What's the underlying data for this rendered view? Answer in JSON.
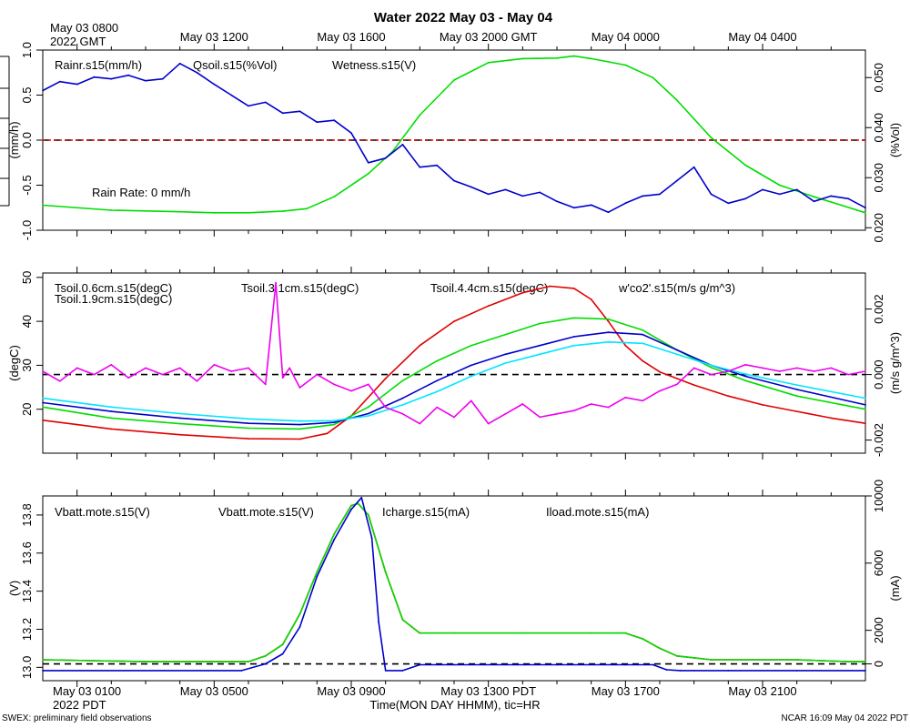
{
  "title": "Water 2022 May 03 - May 04",
  "top_axis": {
    "first_line1": "May 03 0800",
    "first_line2": "2022 GMT",
    "labels": [
      "May 03 1200",
      "May 03 1600",
      "May 03 2000 GMT",
      "May 04 0000",
      "May 04 0400"
    ]
  },
  "bottom_axis": {
    "first_line1": "May 03 0100",
    "first_line2": "2022 PDT",
    "labels": [
      "May 03 0500",
      "May 03 0900",
      "May 03 1300 PDT",
      "May 03 1700",
      "May 03 2100"
    ],
    "xlabel": "Time(MON DAY HHMM), tic=HR"
  },
  "footer": {
    "left": "SWEX: preliminary field observations",
    "right": "NCAR 16:09 May 04 2022 PDT"
  },
  "colors": {
    "red": "#e00000",
    "green": "#00dd00",
    "blue": "#0000cc",
    "cyan": "#00e5ff",
    "magenta": "#ee00ee",
    "axis": "#000000"
  },
  "chart_data": [
    {
      "type": "line",
      "panel": "water",
      "x_unit": "hours since May 03 0000 PDT",
      "xlim": [
        0.0,
        24.0
      ],
      "left_axis": {
        "label": "(mm/h)",
        "ylim": [
          -1.0,
          1.0
        ],
        "ticks": [
          -1.0,
          -0.5,
          0.0,
          0.5,
          1.0
        ],
        "tick_labels": [
          "-1.0",
          "-0.5",
          "0.0",
          "0.5",
          "1.0"
        ]
      },
      "right_axis": {
        "label": "(%Vol)",
        "ylim": [
          0.0195,
          0.0555
        ],
        "ticks": [
          0.02,
          0.03,
          0.04,
          0.05
        ],
        "tick_labels": [
          "0.020",
          "0.030",
          "0.040",
          "0.050"
        ]
      },
      "zero_line": 0.0,
      "annotation": "Rain Rate: 0 mm/h",
      "series": [
        {
          "name": "Rainr.s15(mm/h)",
          "color_key": "red",
          "axis": "left",
          "x": [
            0.0,
            24.0
          ],
          "values": [
            0.0,
            0.0
          ]
        },
        {
          "name": "Qsoil.s15(%Vol)",
          "color_key": "green",
          "axis": "right",
          "x": [
            0.0,
            2.0,
            4.0,
            5.0,
            6.0,
            7.0,
            7.7,
            8.5,
            9.5,
            10.2,
            11.0,
            12.0,
            13.0,
            14.0,
            15.0,
            15.5,
            16.0,
            17.0,
            17.8,
            18.5,
            19.5,
            20.5,
            21.5,
            22.5,
            23.3,
            24.0
          ],
          "values": [
            0.0245,
            0.0235,
            0.0232,
            0.023,
            0.023,
            0.0233,
            0.0238,
            0.0262,
            0.0308,
            0.0352,
            0.0425,
            0.0495,
            0.053,
            0.0538,
            0.0539,
            0.0543,
            0.0538,
            0.0525,
            0.05,
            0.0455,
            0.038,
            0.0325,
            0.0285,
            0.0262,
            0.0245,
            0.023
          ]
        },
        {
          "name": "Wetness.s15(V)",
          "color_key": "blue",
          "axis": "left",
          "x": [
            0.0,
            0.5,
            1.0,
            1.5,
            2.0,
            2.5,
            3.0,
            3.5,
            4.0,
            4.5,
            5.0,
            5.5,
            6.0,
            6.5,
            7.0,
            7.5,
            8.0,
            8.5,
            9.0,
            9.5,
            10.0,
            10.5,
            11.0,
            11.5,
            12.0,
            12.5,
            13.0,
            13.5,
            14.0,
            14.5,
            15.0,
            15.5,
            16.0,
            16.5,
            17.0,
            17.5,
            18.0,
            18.5,
            19.0,
            19.5,
            20.0,
            20.5,
            21.0,
            21.5,
            22.0,
            22.5,
            23.0,
            23.5,
            24.0
          ],
          "values": [
            0.55,
            0.65,
            0.62,
            0.7,
            0.68,
            0.72,
            0.66,
            0.68,
            0.85,
            0.75,
            0.62,
            0.5,
            0.38,
            0.42,
            0.3,
            0.32,
            0.2,
            0.22,
            0.08,
            -0.25,
            -0.2,
            -0.05,
            -0.3,
            -0.28,
            -0.45,
            -0.52,
            -0.6,
            -0.55,
            -0.62,
            -0.58,
            -0.68,
            -0.75,
            -0.72,
            -0.8,
            -0.7,
            -0.62,
            -0.6,
            -0.45,
            -0.3,
            -0.6,
            -0.7,
            -0.65,
            -0.55,
            -0.6,
            -0.55,
            -0.68,
            -0.62,
            -0.65,
            -0.75
          ]
        }
      ]
    },
    {
      "type": "line",
      "panel": "temperature",
      "x_unit": "hours since May 03 0000 PDT",
      "xlim": [
        0.0,
        24.0
      ],
      "left_axis": {
        "label": "(degC)",
        "ylim": [
          10.0,
          51.0
        ],
        "ticks": [
          20,
          30,
          40,
          50
        ],
        "tick_labels": [
          "20",
          "30",
          "40",
          "50"
        ]
      },
      "right_axis": {
        "label": "(m/s g/m^3)",
        "ylim": [
          -0.0024,
          0.0031
        ],
        "ticks": [
          -0.002,
          0.0,
          0.002
        ],
        "tick_labels": [
          "-0.002",
          "0.000",
          "0.002"
        ]
      },
      "zero_line": 0.0,
      "series": [
        {
          "name": "Tsoil.0.6cm.s15(degC)",
          "color_key": "red",
          "axis": "left",
          "x": [
            0.0,
            1.0,
            2.0,
            4.0,
            6.0,
            7.5,
            8.3,
            9.0,
            10.0,
            11.0,
            12.0,
            13.0,
            14.0,
            14.8,
            15.5,
            16.0,
            16.5,
            17.0,
            17.5,
            18.0,
            19.0,
            20.0,
            21.0,
            22.0,
            23.0,
            24.0
          ],
          "values": [
            17.5,
            16.5,
            15.5,
            14.2,
            13.3,
            13.2,
            14.5,
            18.5,
            27.0,
            34.5,
            40.0,
            43.5,
            46.5,
            48.0,
            47.5,
            45.0,
            40.0,
            34.5,
            31.0,
            28.5,
            25.5,
            23.0,
            21.0,
            19.5,
            18.0,
            16.8
          ]
        },
        {
          "name": "Tsoil.1.9cm.s15(degC)",
          "color_key": "green",
          "axis": "left",
          "x": [
            0.0,
            2.0,
            4.0,
            6.0,
            7.5,
            8.5,
            9.5,
            10.5,
            11.5,
            12.5,
            13.5,
            14.5,
            15.5,
            16.5,
            17.5,
            18.5,
            19.5,
            20.5,
            22.0,
            24.0
          ],
          "values": [
            20.5,
            18.0,
            16.7,
            15.7,
            15.5,
            16.5,
            20.5,
            26.5,
            31.0,
            34.5,
            37.0,
            39.5,
            40.8,
            40.5,
            38.0,
            33.5,
            29.5,
            26.5,
            23.0,
            20.0
          ]
        },
        {
          "name": "Tsoil.3.1cm.s15(degC)",
          "color_key": "blue",
          "axis": "left",
          "x": [
            0.0,
            2.0,
            4.0,
            6.0,
            7.5,
            8.5,
            9.5,
            10.5,
            11.5,
            12.5,
            13.5,
            14.5,
            15.5,
            16.5,
            17.5,
            18.5,
            19.5,
            20.5,
            22.0,
            24.0
          ],
          "values": [
            21.5,
            19.5,
            18.0,
            16.8,
            16.5,
            17.0,
            19.0,
            22.5,
            26.5,
            30.0,
            32.5,
            34.5,
            36.5,
            37.5,
            37.0,
            33.5,
            30.0,
            27.5,
            24.5,
            21.0
          ]
        },
        {
          "name": "Tsoil.4.4cm.s15(degC)",
          "color_key": "cyan",
          "axis": "left",
          "x": [
            0.0,
            2.0,
            4.0,
            6.0,
            7.5,
            8.5,
            9.5,
            10.5,
            11.5,
            12.5,
            13.5,
            14.5,
            15.5,
            16.5,
            17.5,
            18.5,
            19.5,
            20.5,
            22.0,
            24.0
          ],
          "values": [
            22.5,
            20.5,
            19.0,
            17.8,
            17.3,
            17.4,
            18.5,
            21.0,
            24.0,
            27.5,
            30.5,
            32.5,
            34.5,
            35.3,
            35.0,
            32.5,
            30.0,
            28.0,
            25.5,
            22.5
          ]
        },
        {
          "name": "w'co2'.s15(m/s g/m^3)",
          "color_key": "magenta",
          "axis": "right",
          "x": [
            0.0,
            0.5,
            1.0,
            1.5,
            2.0,
            2.5,
            3.0,
            3.5,
            4.0,
            4.5,
            5.0,
            5.5,
            6.0,
            6.5,
            6.8,
            7.0,
            7.2,
            7.5,
            8.0,
            8.5,
            9.0,
            9.5,
            10.0,
            10.5,
            11.0,
            11.5,
            12.0,
            12.5,
            13.0,
            13.5,
            14.0,
            14.5,
            15.0,
            15.5,
            16.0,
            16.5,
            17.0,
            17.5,
            18.0,
            18.5,
            19.0,
            19.5,
            20.0,
            20.5,
            21.0,
            21.5,
            22.0,
            22.5,
            23.0,
            23.5,
            24.0
          ],
          "values": [
            0.0001,
            -0.0002,
            0.0002,
            0.0,
            0.0003,
            -0.0001,
            0.0002,
            0.0,
            0.0002,
            -0.0002,
            0.0003,
            0.0001,
            0.0002,
            -0.0003,
            0.0028,
            -0.0001,
            0.0002,
            -0.0004,
            0.0,
            -0.0003,
            -0.0005,
            -0.0003,
            -0.001,
            -0.0012,
            -0.0015,
            -0.001,
            -0.0013,
            -0.0008,
            -0.0015,
            -0.0012,
            -0.0009,
            -0.0013,
            -0.0012,
            -0.0011,
            -0.0009,
            -0.001,
            -0.0007,
            -0.0008,
            -0.0005,
            -0.0003,
            0.0002,
            0.0,
            0.0001,
            0.0003,
            0.0002,
            0.0001,
            0.0002,
            0.0001,
            0.0002,
            0.0,
            0.0001
          ]
        }
      ]
    },
    {
      "type": "line",
      "panel": "power",
      "x_unit": "hours since May 03 0000 PDT",
      "xlim": [
        0.0,
        24.0
      ],
      "left_axis": {
        "label": "(V)",
        "ylim": [
          12.93,
          13.9
        ],
        "ticks": [
          13.0,
          13.2,
          13.4,
          13.6,
          13.8
        ],
        "tick_labels": [
          "13.0",
          "13.2",
          "13.4",
          "13.6",
          "13.8"
        ]
      },
      "right_axis": {
        "label": "(mA)",
        "ylim": [
          -1000,
          10000
        ],
        "ticks": [
          0,
          2000,
          6000,
          10000
        ],
        "tick_labels": [
          "0",
          "2000",
          "6000",
          "10000"
        ]
      },
      "zero_line": 0,
      "series": [
        {
          "name": "Vbatt.mote.s15(V)",
          "color_key": "red",
          "axis": "left",
          "x": [
            0.0,
            3.0,
            6.0,
            6.5,
            7.0,
            7.5,
            8.0,
            8.5,
            9.0,
            9.2,
            9.5,
            10.0,
            10.5,
            11.0,
            12.0,
            14.0,
            16.0,
            16.8,
            17.0,
            17.5,
            18.0,
            18.5,
            19.5,
            20.5,
            22.0,
            23.5,
            24.0
          ],
          "values": [
            13.04,
            13.03,
            13.03,
            13.06,
            13.12,
            13.28,
            13.5,
            13.7,
            13.85,
            13.86,
            13.8,
            13.5,
            13.25,
            13.18,
            13.18,
            13.18,
            13.18,
            13.18,
            13.18,
            13.15,
            13.1,
            13.06,
            13.04,
            13.04,
            13.04,
            13.03,
            13.03
          ]
        },
        {
          "name": "Vbatt.mote.s15(V)",
          "color_key": "green",
          "axis": "left",
          "x": [
            0.0,
            3.0,
            6.0,
            6.5,
            7.0,
            7.5,
            8.0,
            8.5,
            9.0,
            9.2,
            9.5,
            10.0,
            10.5,
            11.0,
            12.0,
            14.0,
            16.0,
            16.8,
            17.0,
            17.5,
            18.0,
            18.5,
            19.5,
            20.5,
            22.0,
            23.5,
            24.0
          ],
          "values": [
            13.04,
            13.03,
            13.03,
            13.06,
            13.12,
            13.28,
            13.5,
            13.7,
            13.85,
            13.86,
            13.8,
            13.5,
            13.25,
            13.18,
            13.18,
            13.18,
            13.18,
            13.18,
            13.18,
            13.15,
            13.1,
            13.06,
            13.04,
            13.04,
            13.04,
            13.03,
            13.03
          ]
        },
        {
          "name": "Icharge.s15(mA)",
          "color_key": "blue",
          "axis": "right",
          "x": [
            0.0,
            5.8,
            6.5,
            7.0,
            7.5,
            8.0,
            8.5,
            9.0,
            9.3,
            9.6,
            9.8,
            10.0,
            10.5,
            11.0,
            12.0,
            15.0,
            17.0,
            17.8,
            18.2,
            18.6,
            19.0,
            20.0,
            22.0,
            24.0
          ],
          "values": [
            -400,
            -400,
            0,
            600,
            2200,
            5200,
            7400,
            9200,
            9900,
            7500,
            2500,
            -400,
            -400,
            -50,
            -50,
            -50,
            -50,
            -50,
            -350,
            -400,
            -400,
            -400,
            -400,
            -400
          ]
        },
        {
          "name": "Iload.mote.s15(mA)",
          "color_key": "cyan",
          "axis": "right",
          "x": [],
          "values": []
        }
      ]
    }
  ]
}
